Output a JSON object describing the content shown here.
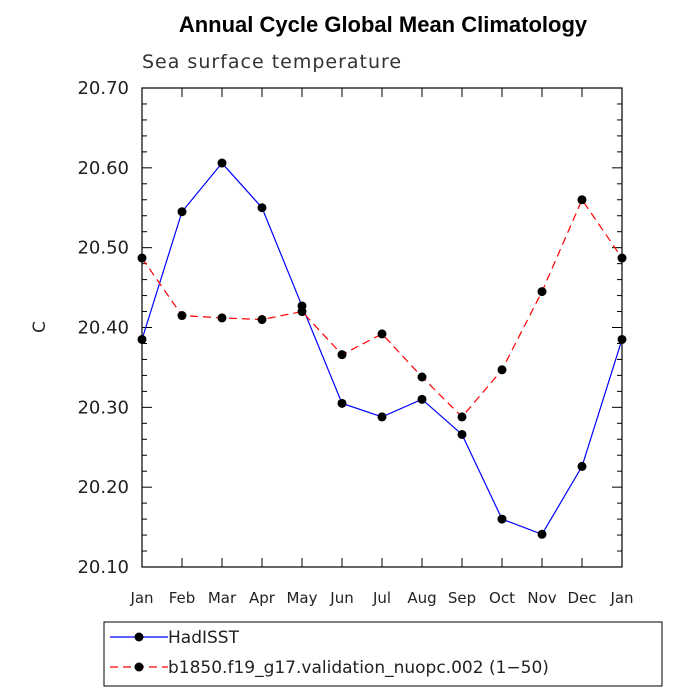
{
  "chart_data": {
    "type": "line",
    "title": "Annual Cycle Global Mean Climatology",
    "subtitle": "Sea surface temperature",
    "ylabel": "C",
    "xlabel": "",
    "ylim": [
      20.1,
      20.7
    ],
    "yticks": [
      "20.10",
      "20.20",
      "20.30",
      "20.40",
      "20.50",
      "20.60",
      "20.70"
    ],
    "categories": [
      "Jan",
      "Feb",
      "Mar",
      "Apr",
      "May",
      "Jun",
      "Jul",
      "Aug",
      "Sep",
      "Oct",
      "Nov",
      "Dec",
      "Jan"
    ],
    "series": [
      {
        "name": "HadISST",
        "color": "#0000ff",
        "dash": "solid",
        "values": [
          20.385,
          20.545,
          20.606,
          20.55,
          20.427,
          20.305,
          20.288,
          20.31,
          20.266,
          20.16,
          20.141,
          20.226,
          20.385
        ]
      },
      {
        "name": "b1850.f19_g17.validation_nuopc.002 (1−50)",
        "color": "#ff0000",
        "dash": "dashed",
        "values": [
          20.487,
          20.415,
          20.412,
          20.41,
          20.42,
          20.366,
          20.392,
          20.338,
          20.288,
          20.347,
          20.445,
          20.56,
          20.487
        ]
      }
    ],
    "legend_position": "bottom"
  }
}
